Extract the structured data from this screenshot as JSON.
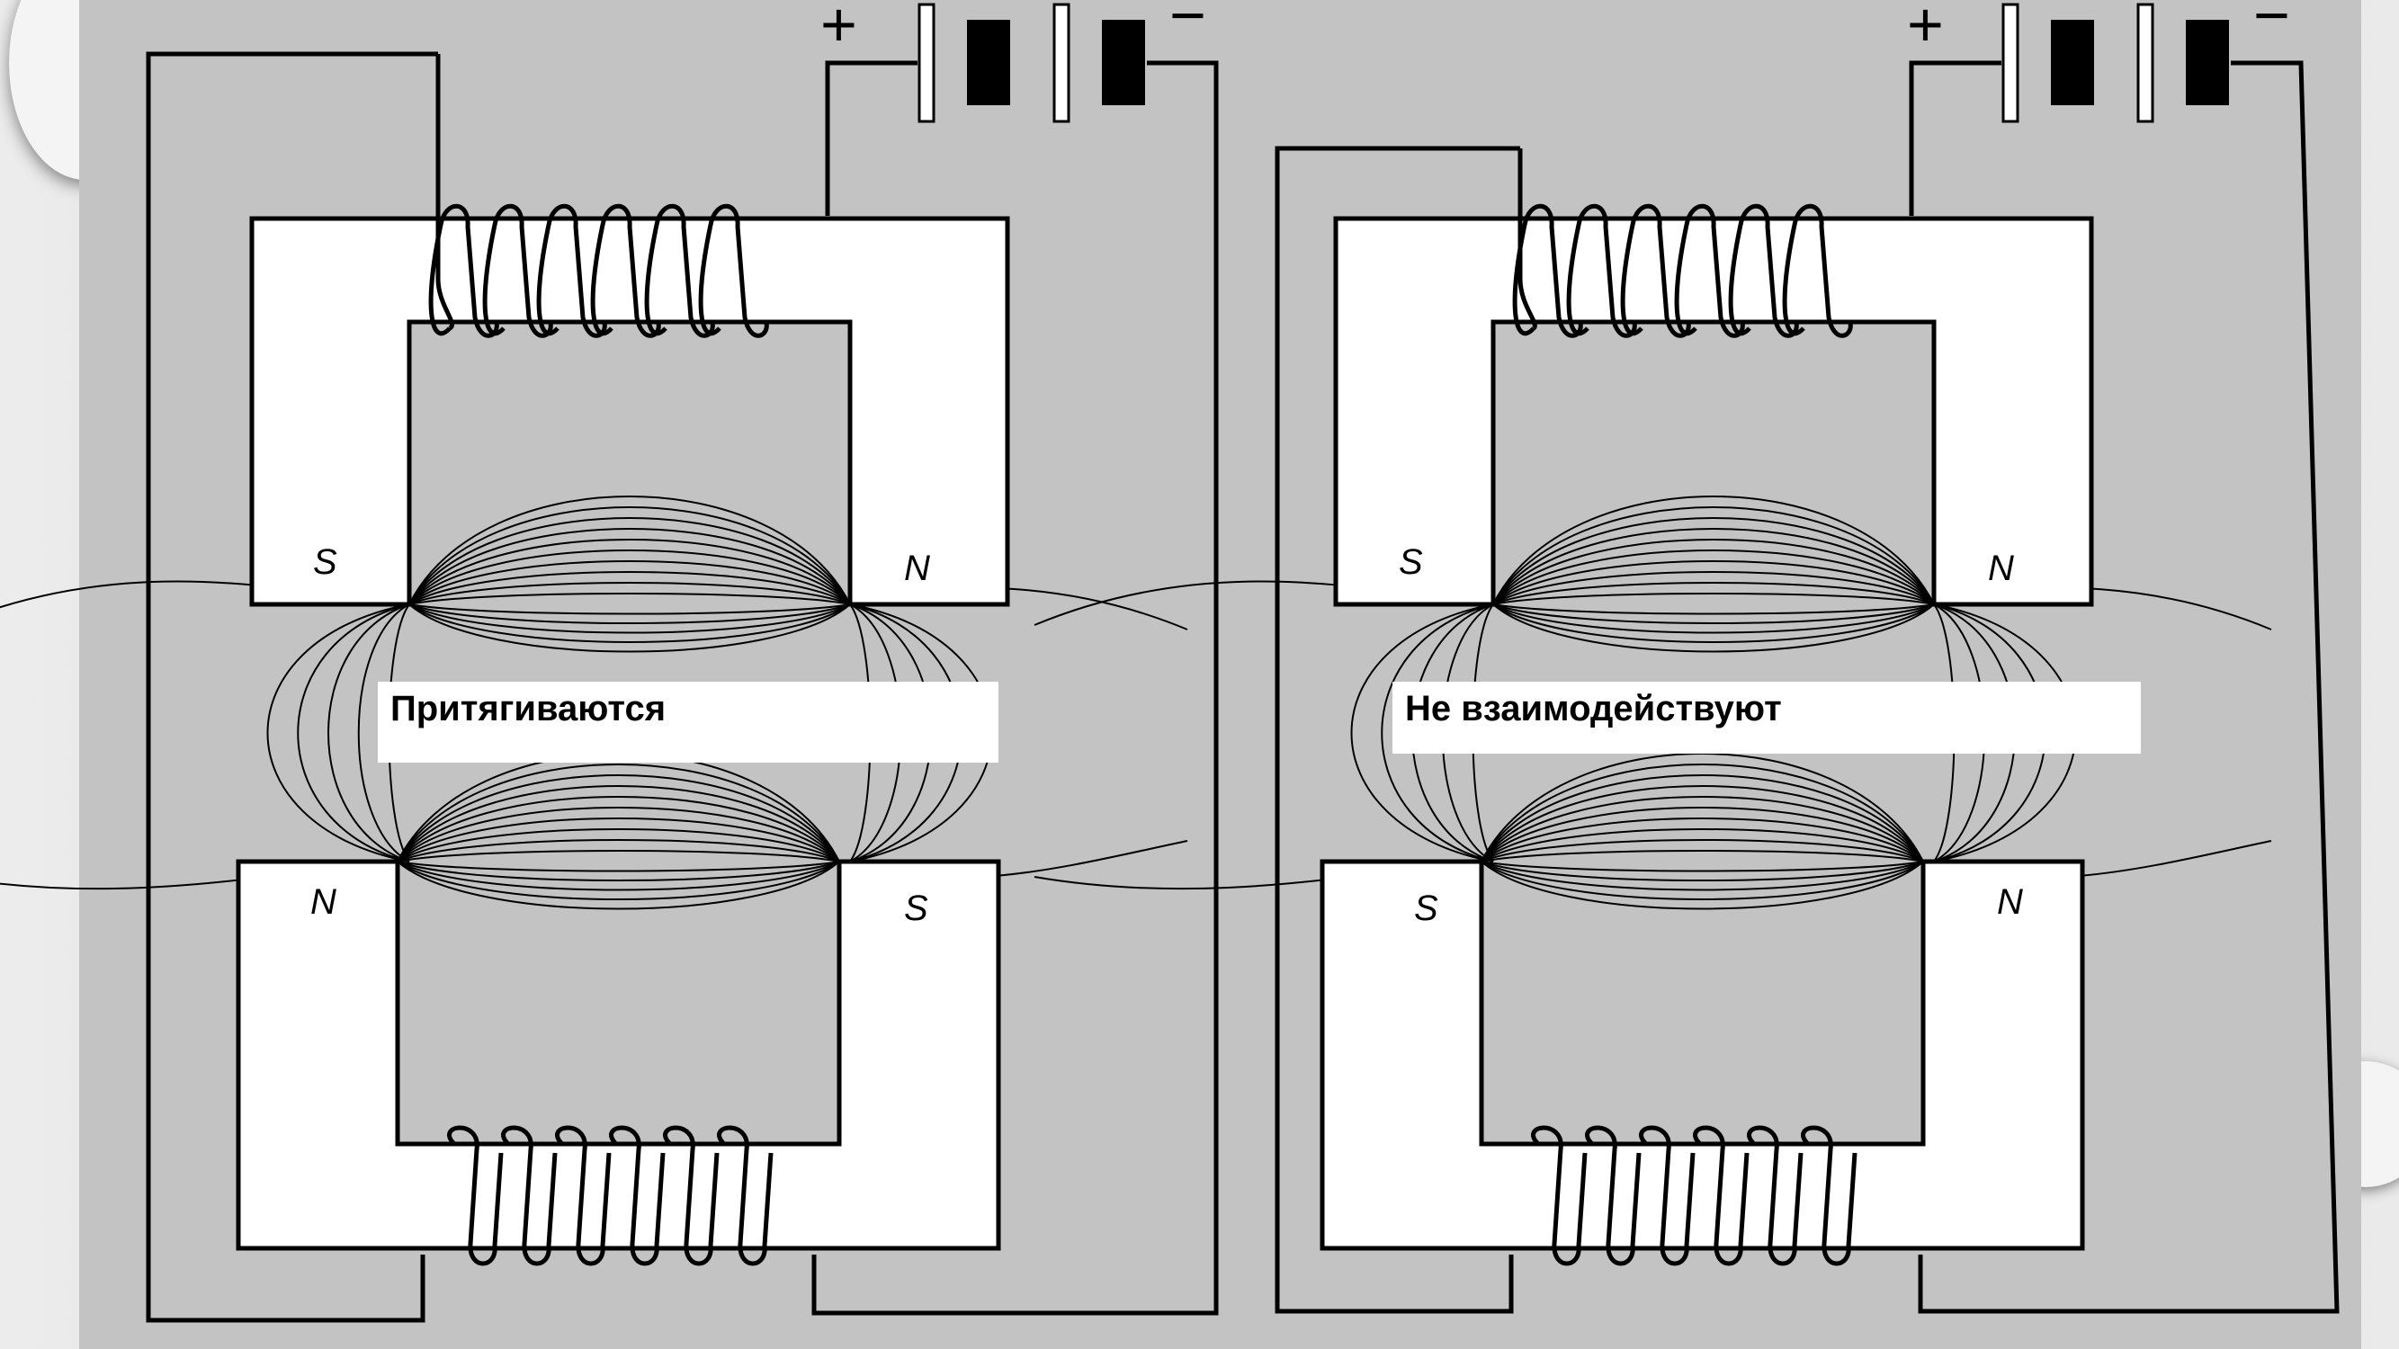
{
  "left_diagram": {
    "caption": "Притягиваются",
    "top_magnet": {
      "left_pole": "S",
      "right_pole": "N"
    },
    "bottom_magnet": {
      "left_pole": "N",
      "right_pole": "S"
    },
    "battery": {
      "plus": "+",
      "minus": "−"
    }
  },
  "right_diagram": {
    "caption": "Не взаимодействуют",
    "top_magnet": {
      "left_pole": "S",
      "right_pole": "N"
    },
    "bottom_magnet": {
      "left_pole": "S",
      "right_pole": "N"
    },
    "battery": {
      "plus": "+",
      "minus": "−"
    }
  },
  "colors": {
    "panel": "#c3c3c3",
    "magnet": "#ffffff",
    "line": "#000000"
  }
}
